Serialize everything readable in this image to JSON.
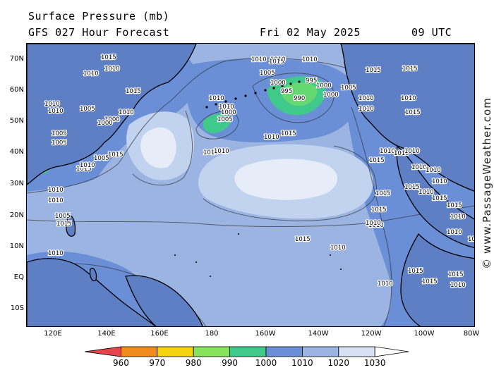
{
  "header": {
    "title": "Surface Pressure (mb)",
    "subtitle": "GFS 027 Hour Forecast",
    "date": "Fri 02 May 2025",
    "time": "09 UTC"
  },
  "watermark": "© www.PassageWeather.com",
  "lat_labels": [
    "70N",
    "60N",
    "50N",
    "40N",
    "30N",
    "20N",
    "10N",
    "EQ",
    "10S"
  ],
  "lon_labels": [
    "120E",
    "140E",
    "160E",
    "180",
    "160W",
    "140W",
    "120W",
    "100W",
    "80W"
  ],
  "colorbar": {
    "labels": [
      "960",
      "970",
      "980",
      "990",
      "1000",
      "1010",
      "1020",
      "1030"
    ],
    "colors": [
      "#e8444a",
      "#f08b1c",
      "#f5d20f",
      "#86e35c",
      "#3fc98a",
      "#6b8fd6",
      "#9bb4e2",
      "#d6e2f3"
    ]
  },
  "colors": {
    "level_1010": "#6b8fd6",
    "level_1015": "#9bb4e2",
    "level_1020": "#c2d3ef",
    "level_1025": "#e6edf8",
    "level_1000": "#3fc98a",
    "level_990": "#86e35c"
  },
  "pressure_labels": [
    {
      "text": "1015"
    },
    {
      "text": "1010"
    },
    {
      "text": "1010"
    },
    {
      "text": "1015"
    },
    {
      "text": "1005"
    },
    {
      "text": "1000"
    },
    {
      "text": "1010"
    },
    {
      "text": "1005"
    },
    {
      "text": "1005"
    },
    {
      "text": "1010"
    },
    {
      "text": "1010"
    },
    {
      "text": "1015"
    },
    {
      "text": "1015"
    },
    {
      "text": "1010"
    },
    {
      "text": "1005"
    },
    {
      "text": "1000"
    },
    {
      "text": "1010"
    },
    {
      "text": "1010"
    },
    {
      "text": "1005"
    },
    {
      "text": "1000"
    },
    {
      "text": "995"
    },
    {
      "text": "990"
    },
    {
      "text": "995"
    },
    {
      "text": "1000"
    },
    {
      "text": "1000"
    },
    {
      "text": "1005"
    },
    {
      "text": "1010"
    },
    {
      "text": "1010"
    },
    {
      "text": "1015"
    },
    {
      "text": "1010"
    },
    {
      "text": "1015"
    },
    {
      "text": "1015"
    },
    {
      "text": "1010"
    },
    {
      "text": "1015"
    },
    {
      "text": "1015"
    },
    {
      "text": "1015"
    },
    {
      "text": "1015"
    },
    {
      "text": "1010"
    },
    {
      "text": "1015"
    },
    {
      "text": "1010"
    },
    {
      "text": "1010"
    },
    {
      "text": "1015"
    },
    {
      "text": "1010"
    },
    {
      "text": "1010"
    },
    {
      "text": "1010"
    },
    {
      "text": "1010"
    },
    {
      "text": "1010"
    },
    {
      "text": "1010"
    },
    {
      "text": "1015"
    },
    {
      "text": "1010"
    },
    {
      "text": "1015"
    },
    {
      "text": "1015"
    },
    {
      "text": "1010"
    },
    {
      "text": "1010"
    },
    {
      "text": "1010"
    },
    {
      "text": "1010"
    },
    {
      "text": "1010"
    },
    {
      "text": "1010"
    },
    {
      "text": "1015"
    },
    {
      "text": "1015"
    },
    {
      "text": "1015"
    },
    {
      "text": "1010"
    },
    {
      "text": "1010"
    },
    {
      "text": "1010"
    },
    {
      "text": "1005"
    },
    {
      "text": "1000"
    },
    {
      "text": "1005"
    },
    {
      "text": "1010"
    },
    {
      "text": "1010"
    },
    {
      "text": "1010"
    },
    {
      "text": "1015"
    },
    {
      "text": "1010"
    },
    {
      "text": "1010"
    },
    {
      "text": "1015"
    },
    {
      "text": "1010"
    }
  ]
}
